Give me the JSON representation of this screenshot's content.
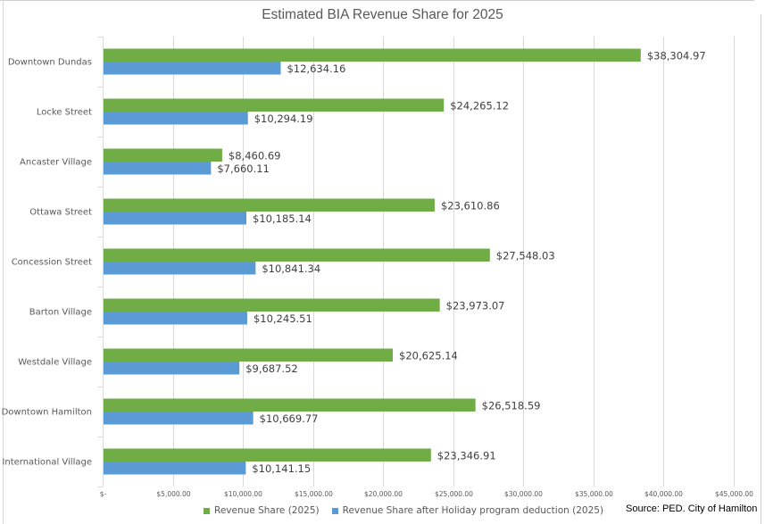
{
  "chart_data": {
    "type": "bar",
    "orientation": "horizontal",
    "title": "Estimated BIA Revenue Share for 2025",
    "xlabel": "",
    "ylabel": "",
    "xlim": [
      0,
      45000
    ],
    "x_ticks": [
      0,
      5000,
      10000,
      15000,
      20000,
      25000,
      30000,
      35000,
      40000,
      45000
    ],
    "x_tick_labels": [
      "$-",
      "$5,000.00",
      "$10,000.00",
      "$15,000.00",
      "$20,000.00",
      "$25,000.00",
      "$30,000.00",
      "$35,000.00",
      "$40,000.00",
      "$45,000.00"
    ],
    "grid": true,
    "legend_position": "bottom",
    "categories": [
      "Downtown Dundas",
      "Locke Street",
      "Ancaster Village",
      "Ottawa Street",
      "Concession Street",
      "Barton Village",
      "Westdale Village",
      "Downtown Hamilton",
      "International Village"
    ],
    "series": [
      {
        "name": "Revenue Share (2025)",
        "color": "#70ad47",
        "values": [
          38304.97,
          24265.12,
          8460.69,
          23610.86,
          27548.03,
          23973.07,
          20625.14,
          26518.59,
          23346.91
        ],
        "labels": [
          "$38,304.97",
          "$24,265.12",
          "$8,460.69",
          "$23,610.86",
          "$27,548.03",
          "$23,973.07",
          "$20,625.14",
          "$26,518.59",
          "$23,346.91"
        ]
      },
      {
        "name": "Revenue Share after Holiday program deduction (2025)",
        "color": "#5b9bd5",
        "values": [
          12634.16,
          10294.19,
          7660.11,
          10185.14,
          10841.34,
          10245.51,
          9687.52,
          10669.77,
          10141.15
        ],
        "labels": [
          "$12,634.16",
          "$10,294.19",
          "$7,660.11",
          "$10,185.14",
          "$10,841.34",
          "$10,245.51",
          "$9,687.52",
          "$10,669.77",
          "$10,141.15"
        ]
      }
    ]
  },
  "source_note": "Source: PED. City of Hamilton"
}
